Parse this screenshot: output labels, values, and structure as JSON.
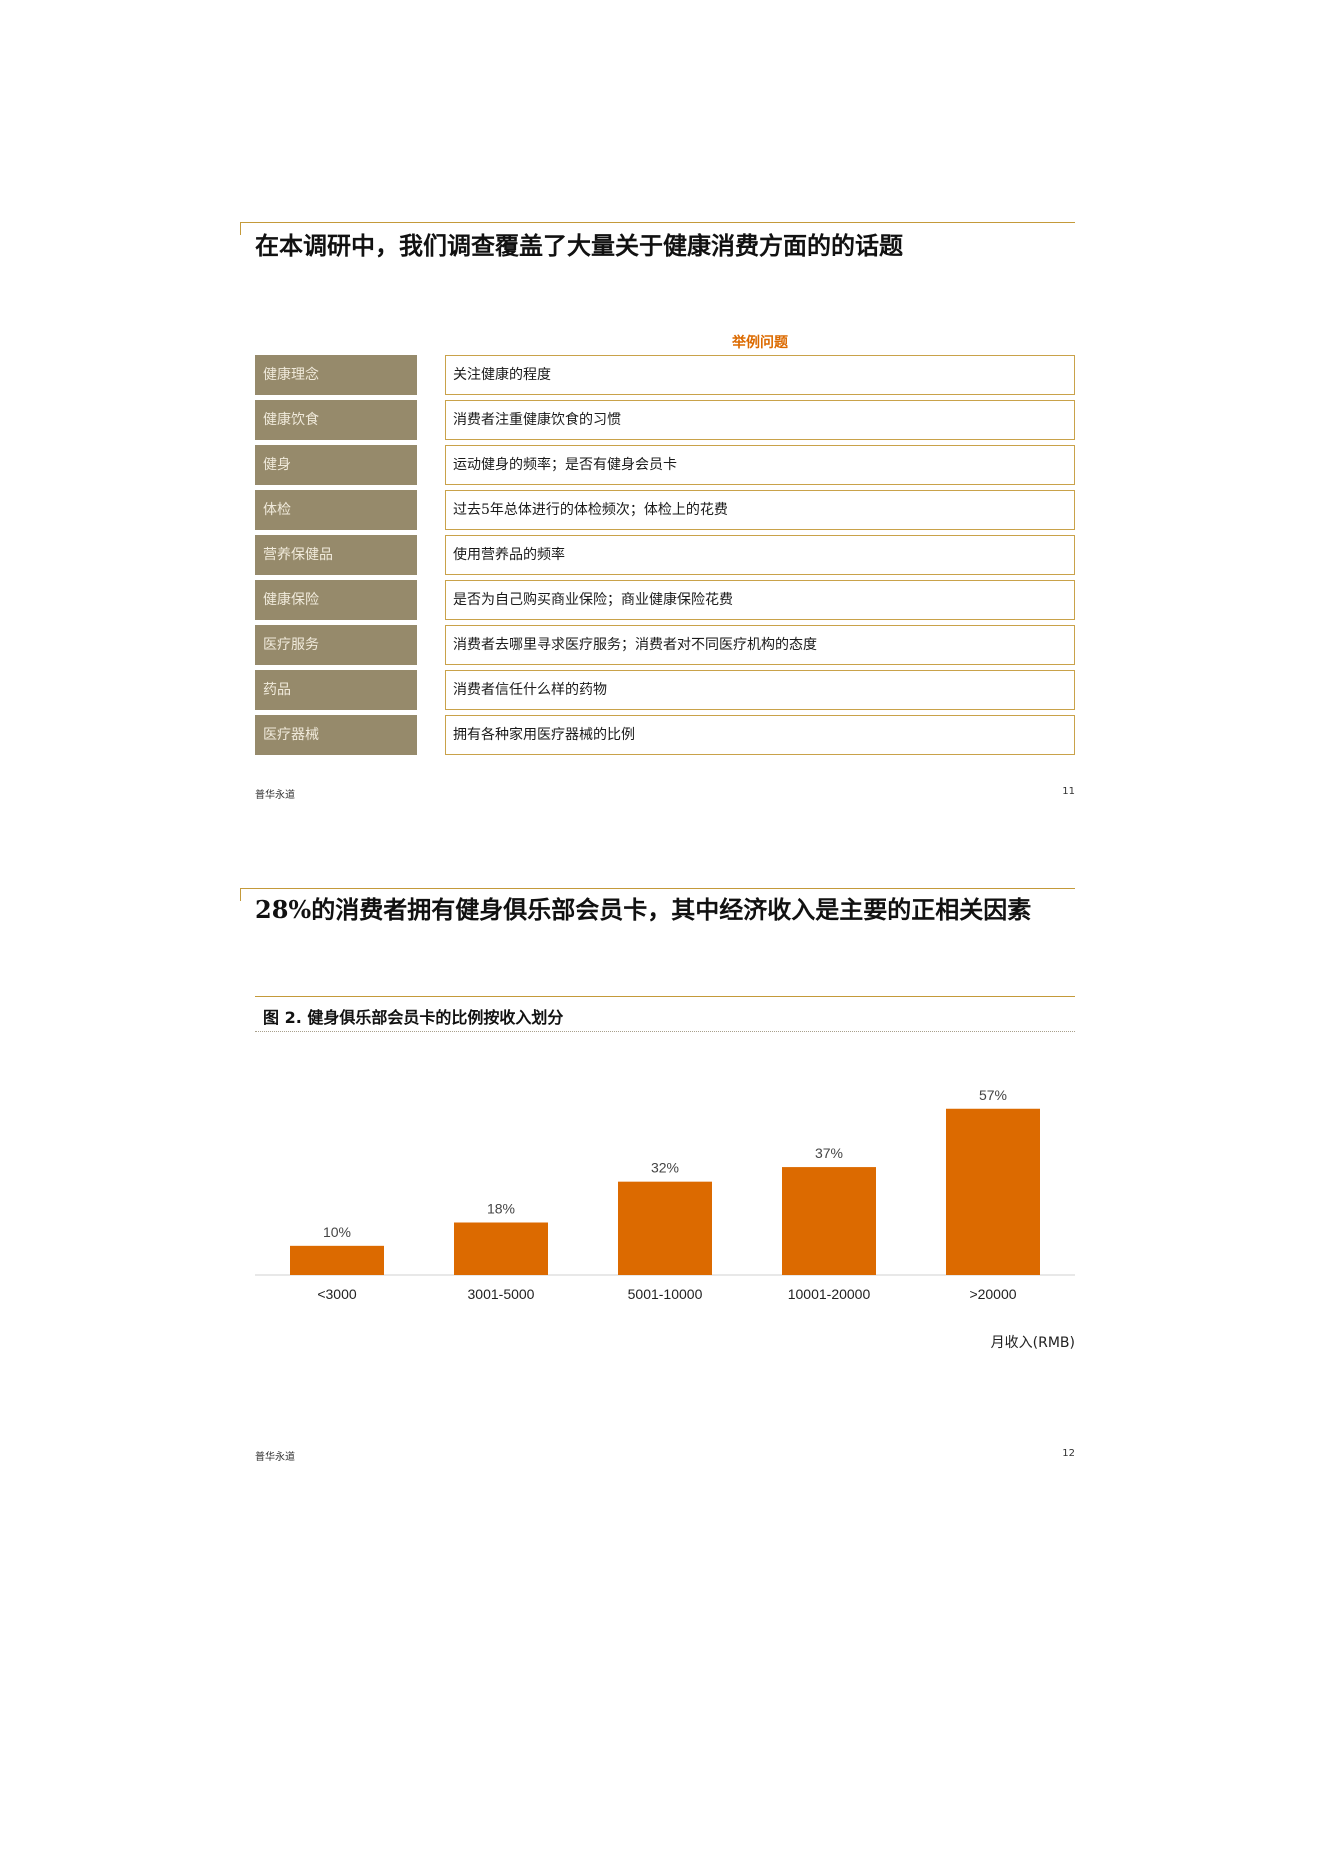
{
  "page1": {
    "title": "在本调研中，我们调查覆盖了大量关于健康消费方面的的话题",
    "table_header": "举例问题",
    "rows": [
      {
        "category": "健康理念",
        "question": "关注健康的程度"
      },
      {
        "category": "健康饮食",
        "question": "消费者注重健康饮食的习惯"
      },
      {
        "category": "健身",
        "question": "运动健身的频率；是否有健身会员卡"
      },
      {
        "category": "体检",
        "question": "过去5年总体进行的体检频次；体检上的花费"
      },
      {
        "category": "营养保健品",
        "question": "使用营养品的频率"
      },
      {
        "category": "健康保险",
        "question": "是否为自己购买商业保险；商业健康保险花费"
      },
      {
        "category": "医疗服务",
        "question": "消费者去哪里寻求医疗服务；消费者对不同医疗机构的态度"
      },
      {
        "category": "药品",
        "question": "消费者信任什么样的药物"
      },
      {
        "category": "医疗器械",
        "question": "拥有各种家用医疗器械的比例"
      }
    ],
    "footer_brand": "普华永道",
    "page_number": "11"
  },
  "page2": {
    "title": "28%的消费者拥有健身俱乐部会员卡，其中经济收入是主要的正相关因素",
    "figure_title": "图 2. 健身俱乐部会员卡的比例按收入划分",
    "footer_brand": "普华永道",
    "page_number": "12"
  },
  "chart_data": {
    "type": "bar",
    "categories": [
      "<3000",
      "3001-5000",
      "5001-10000",
      "10001-20000",
      ">20000"
    ],
    "values": [
      10,
      18,
      32,
      37,
      57
    ],
    "value_labels": [
      "10%",
      "18%",
      "32%",
      "37%",
      "57%"
    ],
    "xlabel": "月收入(RMB)",
    "ylabel": "",
    "ylim": [
      0,
      60
    ],
    "bar_color": "#dc6a00",
    "grid": false
  }
}
